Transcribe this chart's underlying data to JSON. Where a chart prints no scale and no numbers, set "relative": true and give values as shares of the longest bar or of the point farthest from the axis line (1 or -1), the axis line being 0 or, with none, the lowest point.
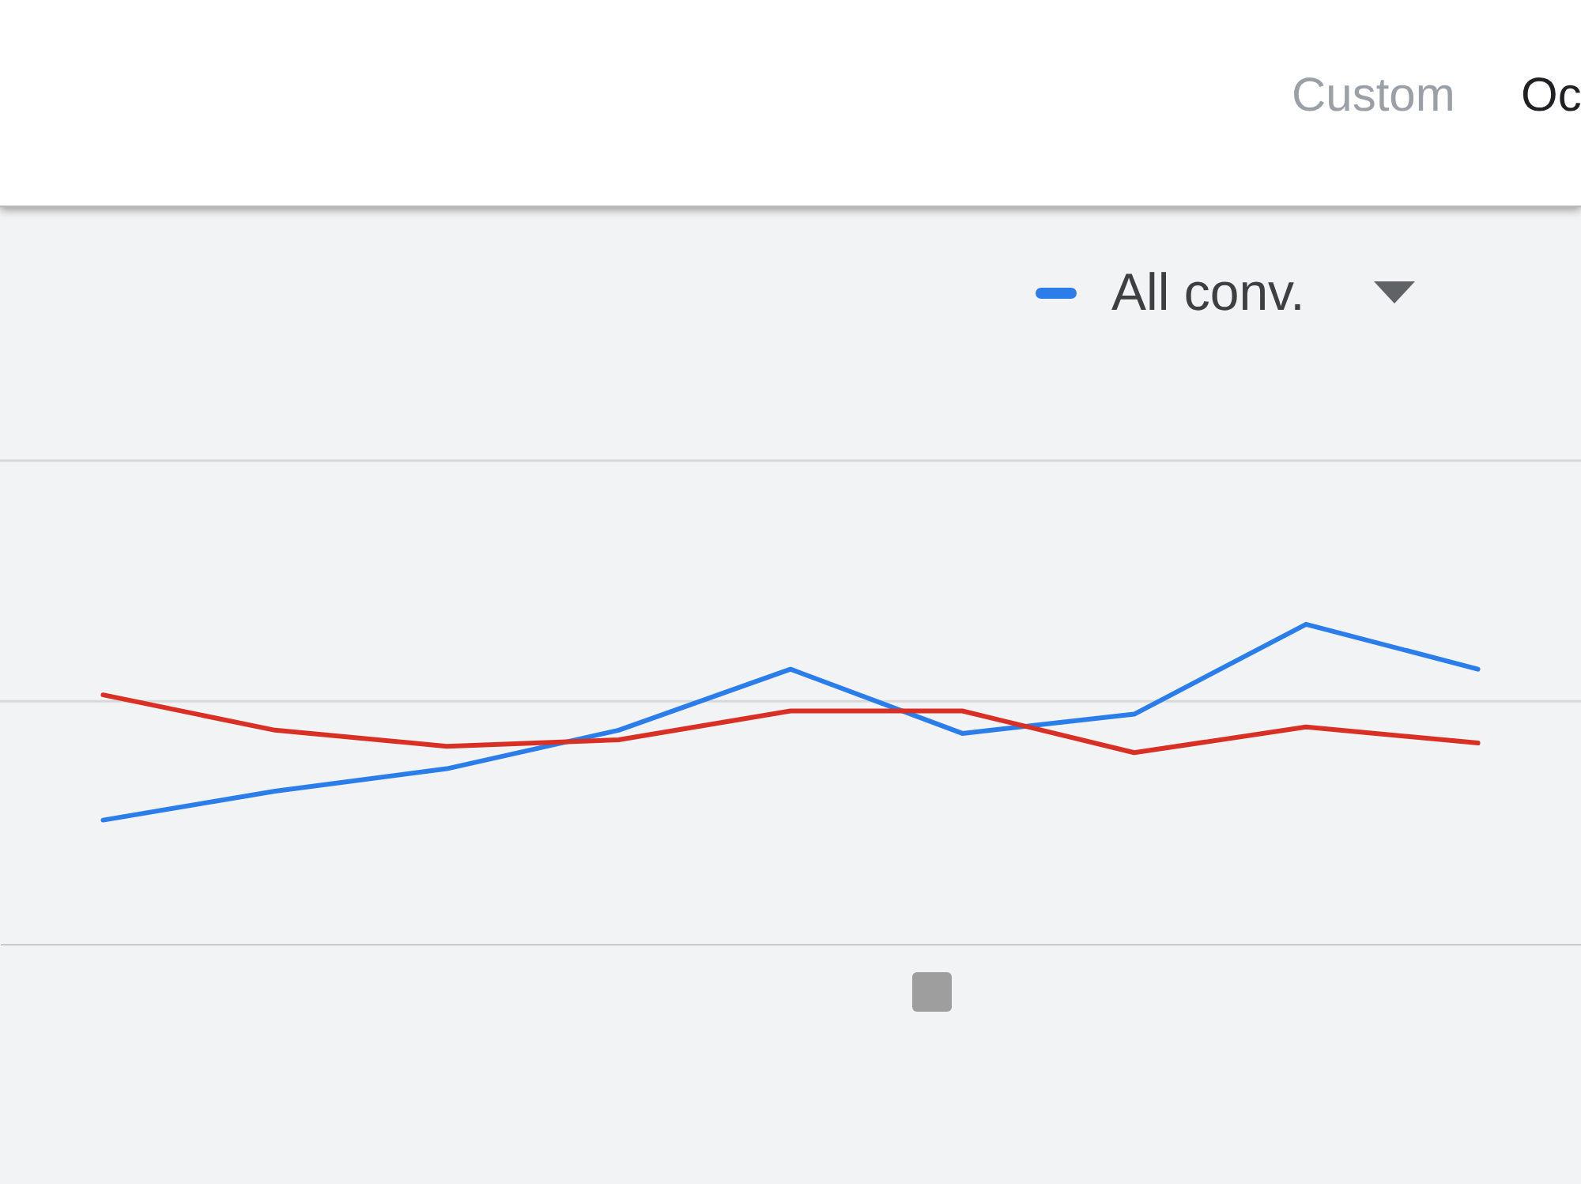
{
  "chart_data": {
    "type": "line",
    "relative": true,
    "categories": [
      null,
      null,
      null,
      null,
      null,
      null,
      null,
      null,
      null
    ],
    "series": [
      {
        "name": "All conv.",
        "color": "#2b7de9",
        "values": [
          0.39,
          0.48,
          0.55,
          0.67,
          0.86,
          0.66,
          0.72,
          1,
          0.86
        ]
      },
      {
        "color": "#d93025",
        "values": [
          0.78,
          0.67,
          0.62,
          0.64,
          0.73,
          0.73,
          0.6,
          0.68,
          0.63
        ]
      }
    ],
    "annotations": [
      "Custom",
      "Oc"
    ],
    "ref_lines": [
      {
        "axis": "y",
        "value": 0.76,
        "color": "#d6d8da"
      },
      {
        "axis": "y",
        "value": 1.51,
        "color": "#d6d8da"
      }
    ],
    "legend": "top right"
  }
}
